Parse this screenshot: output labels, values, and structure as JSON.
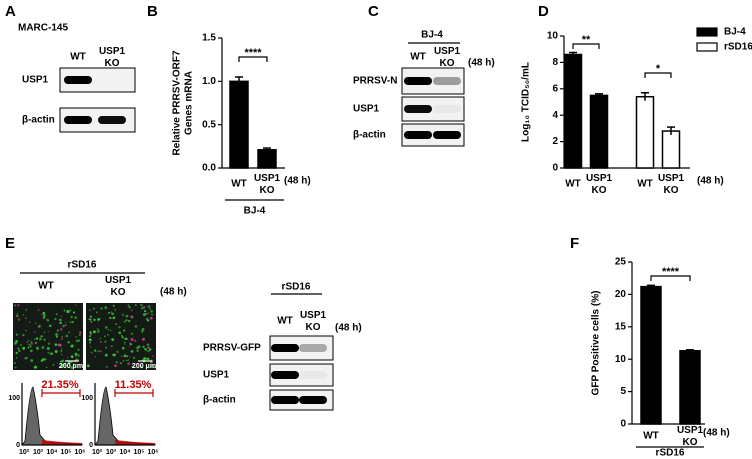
{
  "chart_data": [
    {
      "type": "bar",
      "panel": "B",
      "y_label": [
        "Relative PRRSV-ORF7",
        "Genes mRNA"
      ],
      "categories": [
        "WT",
        "USP1 KO"
      ],
      "values": [
        1.0,
        0.21
      ],
      "errors": [
        0.05,
        0.02
      ],
      "color": "#000000",
      "ylim": [
        0,
        1.5
      ],
      "yticks": [
        {
          "value": 0,
          "label": "0.0"
        },
        {
          "value": 0.5,
          "label": "0.5"
        },
        {
          "value": 1,
          "label": "1.0"
        },
        {
          "value": 1.5,
          "label": "1.5"
        }
      ],
      "significance": [
        "****"
      ],
      "time_label": "(48 h)",
      "group_label": "BJ-4"
    },
    {
      "type": "bar",
      "panel": "D",
      "y_label": [
        "Log₁₀ TCID₅₀/mL"
      ],
      "categories": [
        "WT",
        "USP1 KO",
        "WT",
        "USP1 KO"
      ],
      "series": [
        {
          "name": "BJ-4",
          "color": "#000000",
          "values": [
            8.6,
            5.5,
            null,
            null
          ],
          "errors": [
            0.15,
            0.12,
            null,
            null
          ]
        },
        {
          "name": "rSD16",
          "color": "#ffffff",
          "values": [
            null,
            null,
            5.4,
            2.8
          ],
          "errors": [
            null,
            null,
            0.3,
            0.3
          ]
        }
      ],
      "ylim": [
        0,
        10
      ],
      "yticks": [
        0,
        2,
        4,
        6,
        8,
        10
      ],
      "legend": "upper right",
      "significance": [
        "**",
        "*"
      ],
      "time_label": "(48 h)"
    },
    {
      "type": "bar",
      "panel": "F",
      "y_label": [
        "GFP Positive cells (%)"
      ],
      "categories": [
        "WT",
        "USP1 KO"
      ],
      "values": [
        21.2,
        11.3
      ],
      "errors": [
        0.2,
        0.15
      ],
      "color": "#000000",
      "ylim": [
        0,
        25
      ],
      "yticks": [
        0,
        5,
        10,
        15,
        20,
        25
      ],
      "significance": [
        "****"
      ],
      "time_label": "(48 h)",
      "group_label": "rSD16"
    }
  ],
  "blots": [
    {
      "letter": "A",
      "cell_line": "MARC-145",
      "lanes": [
        "WT",
        "USP1 KO"
      ],
      "rows": [
        "USP1",
        "β-actin"
      ]
    },
    {
      "letter": "C",
      "group_label": "BJ-4",
      "lanes": [
        "WT",
        "USP1 KO"
      ],
      "time_label": "(48 h)",
      "rows": [
        "PRRSV-N",
        "USP1",
        "β-actin"
      ]
    },
    {
      "group_label": "rSD16",
      "lanes": [
        "WT",
        "USP1 KO"
      ],
      "time_label": "(48 h)",
      "rows": [
        "PRRSV-GFP",
        "USP1",
        "β-actin"
      ]
    }
  ],
  "microscopy": {
    "letter": "E",
    "group_label": "rSD16",
    "lanes": [
      "WT",
      "USP1 KO"
    ],
    "time_label": "(48 h)",
    "scale_bars": [
      "200 μm",
      "200 μm"
    ],
    "flow_percentages": [
      "21.35%",
      "11.35%"
    ],
    "flow_x_ticks": [
      "10²",
      "10³",
      "10⁴",
      "10⁵",
      "10⁶"
    ],
    "flow_y_ticks": [
      "100",
      "0"
    ]
  }
}
